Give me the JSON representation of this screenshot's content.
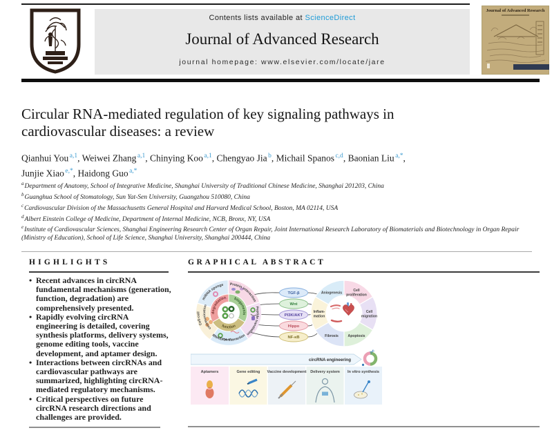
{
  "header": {
    "contents_prefix": "Contents lists available at ",
    "sciencedirect": "ScienceDirect",
    "journal_title": "Journal of Advanced Research",
    "homepage_line": "journal homepage: www.elsevier.com/locate/jare",
    "cover_title": "Journal of Advanced Research"
  },
  "colors": {
    "sciencedirect_blue": "#1d9bd7",
    "author_sup_blue": "#3d9bd0",
    "header_box_gray": "#e8e8e8",
    "cover_tan": "#c2ac7c"
  },
  "article": {
    "title_lines": [
      "Circular RNA-mediated regulation of key signaling pathways in",
      "cardiovascular diseases: a review"
    ],
    "separator": ", ",
    "authors": [
      {
        "name": "Qianhui You",
        "sup": "a,1"
      },
      {
        "name": "Weiwei Zhang",
        "sup": "a,1"
      },
      {
        "name": "Chinying Koo",
        "sup": "a,1"
      },
      {
        "name": "Chengyao Jia",
        "sup": "b"
      },
      {
        "name": "Michail Spanos",
        "sup": "c,d"
      },
      {
        "name": "Baonian Liu",
        "sup": "a,*"
      },
      {
        "name": "Junjie Xiao",
        "sup": "e,*"
      },
      {
        "name": "Haidong Guo",
        "sup": "a,*"
      }
    ],
    "affiliations": [
      {
        "sup": "a",
        "text": "Department of Anatomy, School of Integrative Medicine, Shanghai University of Traditional Chinese Medicine, Shanghai 201203, China"
      },
      {
        "sup": "b",
        "text": "Guanghua School of Stomatology, Sun Yat-Sen University, Guangzhou 510080, China"
      },
      {
        "sup": "c",
        "text": "Cardiovascular Division of the Massachusetts General Hospital and Harvard Medical School, Boston, MA 02114, USA"
      },
      {
        "sup": "d",
        "text": "Albert Einstein College of Medicine, Department of Internal Medicine, NCB, Bronx, NY, USA"
      },
      {
        "sup": "e",
        "text": "Institute of Cardiovascular Sciences, Shanghai Engineering Research Center of Organ Repair, Joint International Research Laboratory of Biomaterials and Biotechnology in Organ Repair (Ministry of Education), School of Life Science, Shanghai University, Shanghai 200444, China"
      }
    ]
  },
  "highlights": {
    "heading": "HIGHLIGHTS",
    "items": [
      "Recent advances in circRNA fundamental mechanisms (generation, function, degradation) are comprehensively presented.",
      "Rapidly evolving circRNA engineering is detailed, covering synthesis platforms, delivery systems, genome editing tools, vaccine development, and aptamer design.",
      "Interactions between circRNAs and cardiovascular pathways are summarized, highlighting circRNA-mediated regulatory mechanisms.",
      "Critical perspectives on future circRNA research directions and challenges are provided."
    ]
  },
  "graphical_abstract": {
    "heading": "GRAPHICAL ABSTRACT",
    "left_wheel": {
      "sectors": {
        "mirna": "miRNA sponge",
        "protein": "Protein interaction",
        "peptide": "Peptide translation",
        "rnadna": "RNA/DNA interaction",
        "cellcell_line1": "Cell-cell",
        "cellcell_line2": "communication"
      },
      "sector_fills": {
        "mirna": "#dcebf7",
        "protein": "#f7d9e6",
        "peptide": "#f2def1",
        "rnadna": "#d9eaf8",
        "cellcell": "#f9f0d8"
      },
      "ring": {
        "degradation": "degradation",
        "biogenesis": "biogenesis",
        "function": "function"
      },
      "ring_fills": {
        "degradation": "#ef9f9f",
        "biogenesis": "#a9cf97",
        "function": "#ccbe80"
      }
    },
    "pathways": [
      {
        "label": "TGF-β",
        "fill": "#dceaf9",
        "stroke": "#85aede",
        "text_color": "#3c5f9e"
      },
      {
        "label": "Wnt",
        "fill": "#def1dc",
        "stroke": "#86bd86",
        "text_color": "#2f7d3a"
      },
      {
        "label": "PI3K/AKT",
        "fill": "#e6e0f6",
        "stroke": "#a195d6",
        "text_color": "#54439e"
      },
      {
        "label": "Hippo",
        "fill": "#fadbdf",
        "stroke": "#e295a0",
        "text_color": "#b84a58"
      },
      {
        "label": "NF-κB",
        "fill": "#f6eecb",
        "stroke": "#cdbd72",
        "text_color": "#7d6f28"
      }
    ],
    "right_wheel": {
      "sectors": {
        "angiogenesis": "Aniogenesis",
        "proliferation_line1": "Cell",
        "proliferation_line2": "proliferation",
        "migration_line1": "Cell",
        "migration_line2": "migration",
        "apoptosis": "Apoptosis",
        "fibrosis": "Fibrosis",
        "inflammation_line1": "Inflam-",
        "inflammation_line2": "mation"
      },
      "sector_fills": {
        "angiogenesis": "#d9ecf8",
        "proliferation": "#f8d9e6",
        "migration": "#e8e0f4",
        "apoptosis": "#def0da",
        "fibrosis": "#dce4f6",
        "inflammation": "#faf3da"
      }
    },
    "banner_label": "circRNA engineering",
    "panels": [
      {
        "label": "Aptamers",
        "fill": "#fce9f3"
      },
      {
        "label": "Gene editing",
        "fill": "#fbf7e3"
      },
      {
        "label": "Vaccine development",
        "fill": "#edf2f6"
      },
      {
        "label": "Delivery system",
        "fill": "#ebf3ef"
      },
      {
        "label": "In vitro synthesis",
        "fill": "#e9f2fa"
      }
    ]
  }
}
